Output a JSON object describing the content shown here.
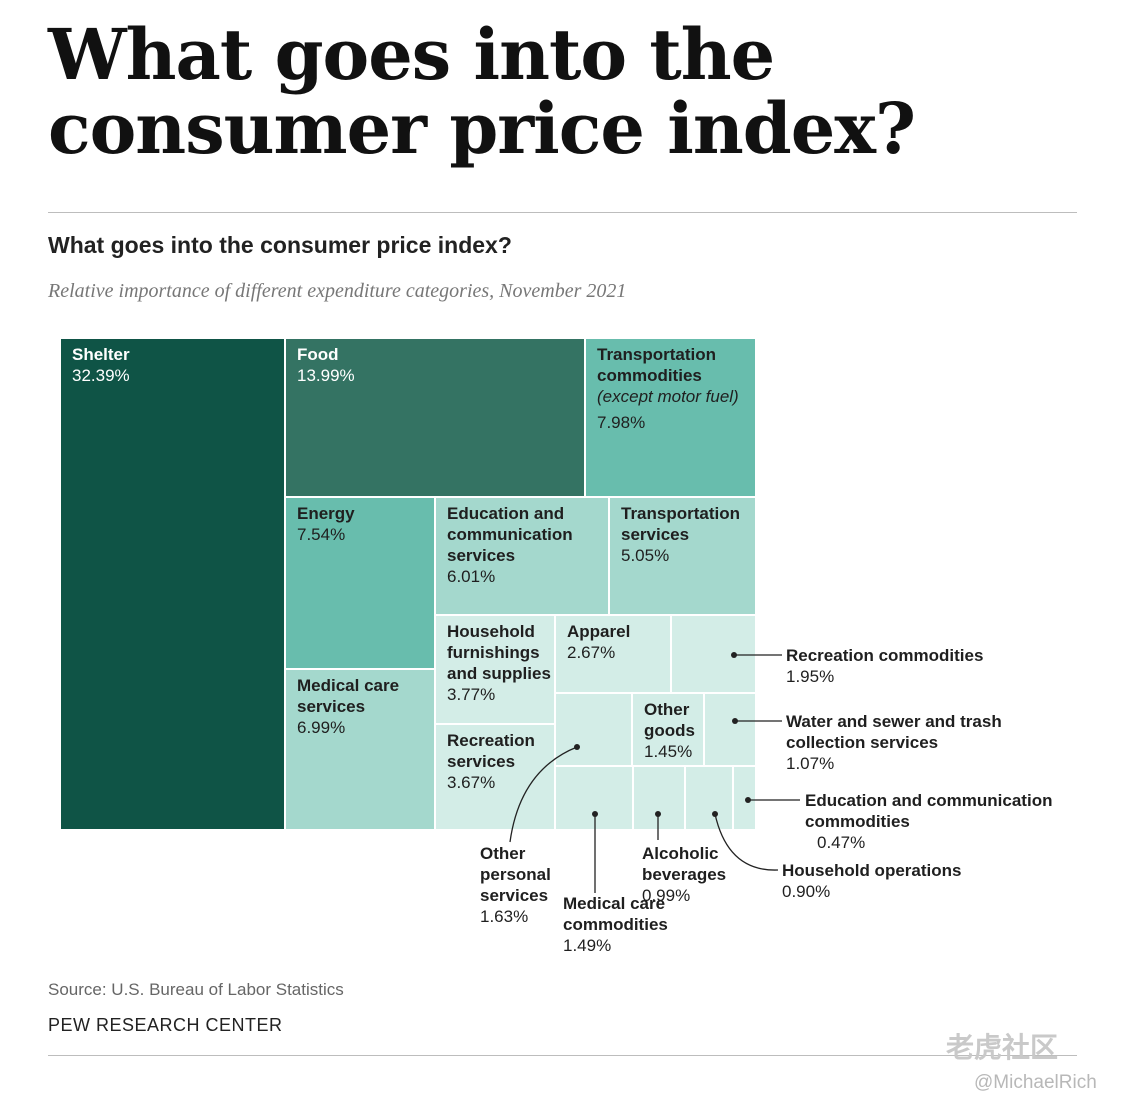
{
  "headline": "What goes into the consumer price index?",
  "chart_data": {
    "type": "treemap",
    "title": "What goes into the consumer price index?",
    "subtitle": "Relative importance of different expenditure categories, November 2021",
    "unit": "%",
    "items": [
      {
        "id": "shelter",
        "label": "Shelter",
        "value": 32.39,
        "pct_text": "32.39%"
      },
      {
        "id": "food",
        "label": "Food",
        "value": 13.99,
        "pct_text": "13.99%"
      },
      {
        "id": "trans-commod",
        "label": "Transportation commodities",
        "sublabel": "(except motor fuel)",
        "value": 7.98,
        "pct_text": "7.98%"
      },
      {
        "id": "energy",
        "label": "Energy",
        "value": 7.54,
        "pct_text": "7.54%"
      },
      {
        "id": "edu-comm-serv",
        "label": "Education and communication services",
        "value": 6.01,
        "pct_text": "6.01%"
      },
      {
        "id": "trans-serv",
        "label": "Transportation services",
        "value": 5.05,
        "pct_text": "5.05%"
      },
      {
        "id": "medical-serv",
        "label": "Medical care services",
        "value": 6.99,
        "pct_text": "6.99%"
      },
      {
        "id": "household-furn",
        "label": "Household furnishings and supplies",
        "value": 3.77,
        "pct_text": "3.77%"
      },
      {
        "id": "apparel",
        "label": "Apparel",
        "value": 2.67,
        "pct_text": "2.67%"
      },
      {
        "id": "rec-commod",
        "label": "Recreation commodities",
        "value": 1.95,
        "pct_text": "1.95%"
      },
      {
        "id": "rec-serv",
        "label": "Recreation services",
        "value": 3.67,
        "pct_text": "3.67%"
      },
      {
        "id": "other-personal",
        "label": "Other personal services",
        "value": 1.63,
        "pct_text": "1.63%"
      },
      {
        "id": "other-goods",
        "label": "Other goods",
        "value": 1.45,
        "pct_text": "1.45%"
      },
      {
        "id": "water-sewer",
        "label": "Water and sewer and trash collection services",
        "value": 1.07,
        "pct_text": "1.07%"
      },
      {
        "id": "medical-commod",
        "label": "Medical care commodities",
        "value": 1.49,
        "pct_text": "1.49%"
      },
      {
        "id": "alcoholic",
        "label": "Alcoholic beverages",
        "value": 0.99,
        "pct_text": "0.99%"
      },
      {
        "id": "household-ops",
        "label": "Household operations",
        "value": 0.9,
        "pct_text": "0.90%"
      },
      {
        "id": "edu-comm-commod",
        "label": "Education and communication commodities",
        "value": 0.47,
        "pct_text": "0.47%"
      }
    ],
    "colors": {
      "darkest": "#0f5446",
      "dark": "#347363",
      "medium": "#68bdad",
      "light": "#a4d8cd",
      "lightest": "#d3ede7",
      "border": "#ffffff"
    }
  },
  "footer": {
    "source": "Source: U.S. Bureau of Labor Statistics",
    "brand": "PEW RESEARCH CENTER"
  },
  "watermark": {
    "line1": "老虎社区",
    "line2": "@MichaelRich"
  }
}
